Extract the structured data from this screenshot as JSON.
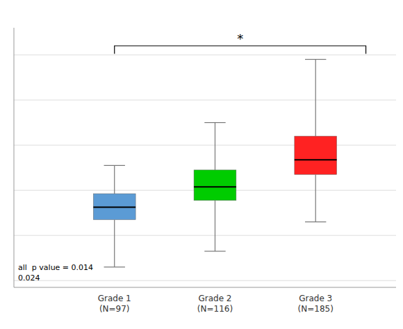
{
  "chart_data": {
    "type": "box",
    "categories": [
      "Grade 1\n(N=97)",
      "Grade 2\n(N=116)",
      "Grade 3\n(N=185)"
    ],
    "boxes": [
      {
        "whislo": 0.6,
        "q1": 2.7,
        "med": 3.25,
        "q3": 3.85,
        "whishi": 5.1
      },
      {
        "whislo": 1.3,
        "q1": 3.55,
        "med": 4.15,
        "q3": 4.9,
        "whishi": 7.0
      },
      {
        "whislo": 2.6,
        "q1": 4.7,
        "med": 5.35,
        "q3": 6.4,
        "whishi": 9.8
      }
    ],
    "colors": [
      "#5B9BD5",
      "#00CC00",
      "#FF2222"
    ],
    "ylim": [
      -0.3,
      11.2
    ],
    "yticks": [
      0,
      2,
      4,
      6,
      8,
      10
    ],
    "grid": true,
    "tick_labels": "x",
    "bracket": {
      "text": "*",
      "y": 10.4,
      "drop": 0.35
    },
    "annotations": [
      "all  p value = 0.014",
      "0.024"
    ]
  }
}
